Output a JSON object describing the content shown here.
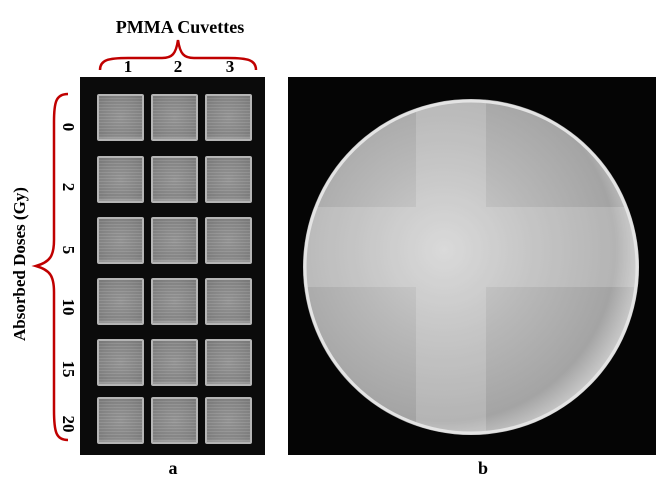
{
  "figure": {
    "title": "PMMA Cuvettes",
    "columns": [
      "1",
      "2",
      "3"
    ],
    "row_axis_label": "Absorbed Doses (Gy)",
    "rows": [
      "0",
      "2",
      "5",
      "10",
      "15",
      "20"
    ],
    "panel_a_label": "a",
    "panel_b_label": "b",
    "accent_color": "#c00000"
  }
}
